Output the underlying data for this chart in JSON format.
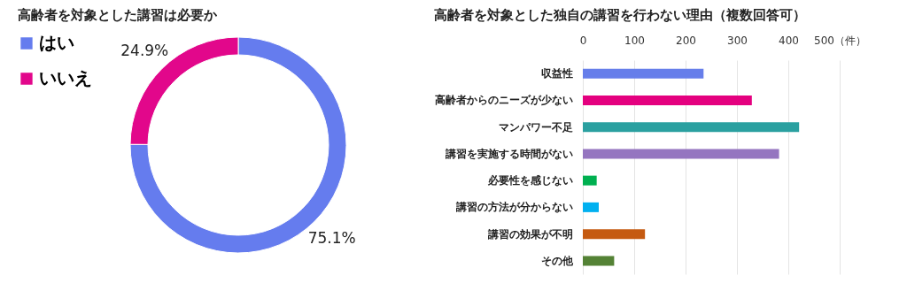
{
  "chart_data": [
    {
      "type": "donut",
      "title": "高齢者を対象とした講習は必要か",
      "categories": [
        "はい",
        "いいえ"
      ],
      "values": [
        75.1,
        24.9
      ],
      "colors": [
        "#657cee",
        "#e2078b"
      ],
      "value_labels": [
        "75.1%",
        "24.9%"
      ],
      "legend": "left"
    },
    {
      "type": "bar",
      "title": "高齢者を対象とした独自の講習を行わない理由（複数回答可）",
      "orientation": "horizontal",
      "categories": [
        "収益性",
        "高齢者からのニーズが少ない",
        "マンパワー不足",
        "講習を実施する時間がない",
        "必要性を感じない",
        "講習の方法が分からない",
        "講習の効果が不明",
        "その他"
      ],
      "values": [
        235,
        329,
        421,
        382,
        27,
        31,
        121,
        61
      ],
      "colors": [
        "#667eea",
        "#e4007f",
        "#2aa0a0",
        "#9575c0",
        "#00b050",
        "#00b0f0",
        "#c55a11",
        "#548235"
      ],
      "xlim": [
        0,
        500
      ],
      "xticks": [
        0,
        100,
        200,
        300,
        400,
        {
          "value": 500,
          "label": "500（件）"
        }
      ],
      "grid": "x"
    }
  ]
}
